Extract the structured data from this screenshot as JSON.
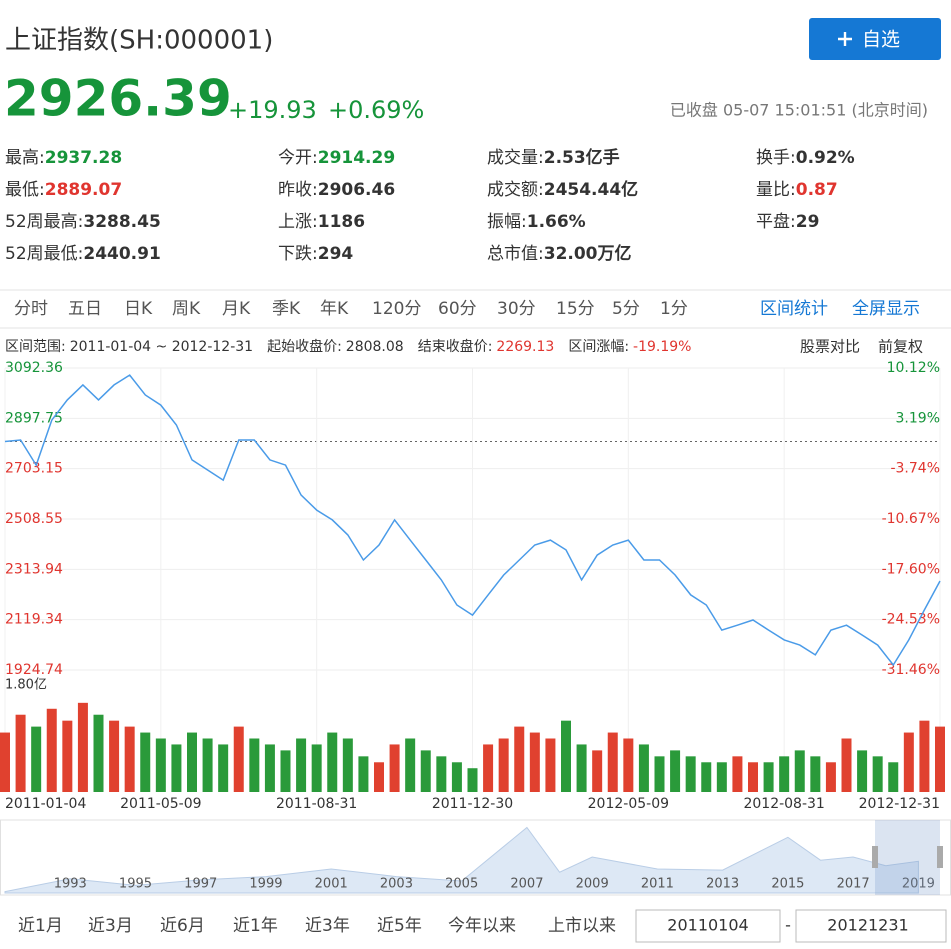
{
  "header": {
    "title": "上证指数(SH:000001)",
    "button": "自选",
    "price": "2926.39",
    "change": "+19.93",
    "change_pct": "+0.69%",
    "status": "已收盘 05-07 15:01:51 (北京时间)"
  },
  "stats": [
    [
      {
        "label": "最高:",
        "value": "2937.28",
        "color": "#16943a"
      },
      {
        "label": "今开:",
        "value": "2914.29",
        "color": "#16943a"
      },
      {
        "label": "成交量:",
        "value": "2.53亿手",
        "color": "#333333"
      },
      {
        "label": "换手:",
        "value": "0.92%",
        "color": "#333333"
      }
    ],
    [
      {
        "label": "最低:",
        "value": "2889.07",
        "color": "#e0352f"
      },
      {
        "label": "昨收:",
        "value": "2906.46",
        "color": "#333333"
      },
      {
        "label": "成交额:",
        "value": "2454.44亿",
        "color": "#333333"
      },
      {
        "label": "量比:",
        "value": "0.87",
        "color": "#e0352f"
      }
    ],
    [
      {
        "label": "52周最高:",
        "value": "3288.45",
        "color": "#333333"
      },
      {
        "label": "上涨:",
        "value": "1186",
        "color": "#333333"
      },
      {
        "label": "振幅:",
        "value": "1.66%",
        "color": "#333333"
      },
      {
        "label": "平盘:",
        "value": "29",
        "color": "#333333"
      }
    ],
    [
      {
        "label": "52周最低:",
        "value": "2440.91",
        "color": "#333333"
      },
      {
        "label": "下跌:",
        "value": "294",
        "color": "#333333"
      },
      {
        "label": "总市值:",
        "value": "32.00万亿",
        "color": "#333333"
      }
    ]
  ],
  "tabs": [
    "分时",
    "五日",
    "日K",
    "周K",
    "月K",
    "季K",
    "年K",
    "120分",
    "60分",
    "30分",
    "15分",
    "5分",
    "1分"
  ],
  "tools": [
    "区间统计",
    "全屏显示"
  ],
  "range_info": {
    "range_label": "区间范围:",
    "range": "2011-01-04 ~ 2012-12-31",
    "start_label": "起始收盘价:",
    "start_close": 2808.08,
    "end_label": "结束收盘价:",
    "end_close": 2269.13,
    "change_label": "区间涨幅:",
    "change": "-19.19%",
    "compare": "股票对比",
    "adjust": "前复权"
  },
  "chart_data": [
    {
      "type": "line",
      "categories": [
        "2011-01-04",
        null,
        null,
        null,
        null,
        null,
        null,
        null,
        null,
        null,
        "2011-05-09",
        null,
        null,
        null,
        null,
        null,
        null,
        null,
        null,
        null,
        "2011-08-31",
        null,
        null,
        null,
        null,
        null,
        null,
        null,
        null,
        null,
        "2011-12-30",
        null,
        null,
        null,
        null,
        null,
        null,
        null,
        null,
        null,
        "2012-05-09",
        null,
        null,
        null,
        null,
        null,
        null,
        null,
        null,
        null,
        "2012-08-31",
        null,
        null,
        null,
        null,
        null,
        null,
        null,
        null,
        null,
        "2012-12-31"
      ],
      "series": [
        {
          "color": "#4a9be8",
          "values": [
            2808,
            2814,
            2717,
            2891,
            2969,
            3027,
            2969,
            3027,
            3065,
            2988,
            2949,
            2872,
            2737,
            2698,
            2659,
            2814,
            2814,
            2737,
            2717,
            2601,
            2543,
            2505,
            2447,
            2350,
            2408,
            2505,
            2427,
            2350,
            2273,
            2176,
            2137,
            2215,
            2292,
            2350,
            2408,
            2427,
            2389,
            2273,
            2369,
            2408,
            2427,
            2350,
            2350,
            2292,
            2215,
            2176,
            2079,
            2098,
            2118,
            2079,
            2041,
            2021,
            1983,
            2079,
            2098,
            2060,
            2021,
            1944,
            2041,
            2157,
            2269
          ]
        }
      ],
      "ylim": [
        1924.74,
        3092.36
      ],
      "yticks": [
        3092.36,
        2897.75,
        2703.15,
        2508.55,
        2313.94,
        2119.34,
        1924.74
      ],
      "y2lim": [
        -31.46,
        10.12
      ],
      "y2ticks": [
        {
          "value": 10.12,
          "label": "10.12%"
        },
        {
          "value": 3.19,
          "label": "3.19%"
        },
        {
          "value": -3.74,
          "label": "-3.74%"
        },
        {
          "value": -10.67,
          "label": "-10.67%"
        },
        {
          "value": -17.6,
          "label": "-17.60%"
        },
        {
          "value": -24.53,
          "label": "-24.53%"
        },
        {
          "value": -31.46,
          "label": "-31.46%"
        }
      ],
      "up_color": "#16943a",
      "down_color": "#e0352f",
      "grid": true
    },
    {
      "type": "bar",
      "series": [
        {
          "color": "#e0412f",
          "values": [
            1.0,
            1.3,
            null,
            1.4,
            1.2,
            1.5,
            null,
            1.2,
            1.1,
            null,
            null,
            null,
            null,
            null,
            null,
            1.1,
            null,
            null,
            null,
            null,
            null,
            null,
            null,
            null,
            0.5,
            0.8,
            null,
            null,
            null,
            null,
            null,
            0.8,
            0.9,
            1.1,
            1.0,
            0.9,
            null,
            null,
            0.7,
            1.0,
            0.9,
            null,
            null,
            null,
            null,
            null,
            null,
            0.6,
            0.5,
            null,
            null,
            null,
            null,
            0.5,
            0.9,
            null,
            null,
            null,
            1.0,
            1.2,
            1.1
          ]
        },
        {
          "color": "#2a9a3a",
          "values": [
            null,
            null,
            1.1,
            null,
            null,
            null,
            1.3,
            null,
            null,
            1.0,
            0.9,
            0.8,
            1.0,
            0.9,
            0.8,
            null,
            0.9,
            0.8,
            0.7,
            0.9,
            0.8,
            1.0,
            0.9,
            0.6,
            null,
            null,
            0.9,
            0.7,
            0.6,
            0.5,
            0.4,
            null,
            null,
            null,
            null,
            null,
            1.2,
            0.8,
            null,
            null,
            null,
            0.8,
            0.6,
            0.7,
            0.6,
            0.5,
            0.5,
            null,
            null,
            0.5,
            0.6,
            0.7,
            0.6,
            null,
            null,
            0.7,
            0.6,
            0.5,
            null,
            null,
            null
          ]
        }
      ],
      "ylim": [
        0,
        1.8
      ],
      "yticks": [
        {
          "value": 1.8,
          "label": "1.80亿"
        }
      ]
    },
    {
      "type": "area",
      "x": [
        1991,
        1993,
        1995,
        1997,
        1999,
        2001,
        2003,
        2005,
        2007,
        2008,
        2009,
        2011,
        2013,
        2015,
        2016,
        2017,
        2018,
        2019
      ],
      "values": [
        130,
        1300,
        700,
        1200,
        1500,
        2200,
        1500,
        1100,
        6000,
        1900,
        3300,
        2200,
        2100,
        5100,
        3000,
        3300,
        2500,
        2900
      ],
      "color": "#dde8f5",
      "xlim": [
        1991,
        2020
      ],
      "ylim": [
        0,
        6500
      ],
      "xticks": [
        1993,
        1995,
        1997,
        1999,
        2001,
        2003,
        2005,
        2007,
        2009,
        2011,
        2013,
        2015,
        2017,
        2019
      ]
    }
  ],
  "periods": [
    "近1月",
    "近3月",
    "近6月",
    "近1年",
    "近3年",
    "近5年",
    "今年以来",
    "上市以来"
  ],
  "date_inputs": {
    "from": "20110104",
    "sep": "-",
    "to": "20121231"
  }
}
